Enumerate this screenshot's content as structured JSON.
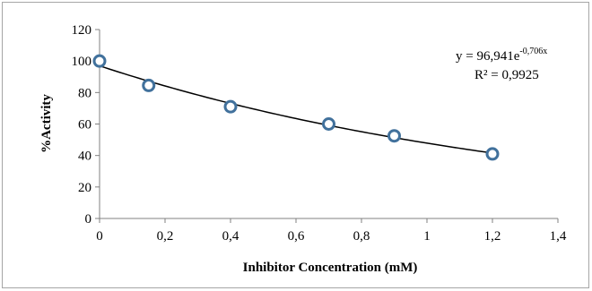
{
  "chart_data": {
    "type": "scatter",
    "xlabel": "Inhibitor  Concentration (mM)",
    "ylabel": "%Activity",
    "xlim": [
      0,
      1.4
    ],
    "ylim": [
      0,
      120
    ],
    "x_ticks": [
      "0",
      "0,2",
      "0,4",
      "0,6",
      "0,8",
      "1",
      "1,2",
      "1,4"
    ],
    "y_ticks": [
      "0",
      "20",
      "40",
      "60",
      "80",
      "100",
      "120"
    ],
    "grid": false,
    "legend": "none",
    "series": [
      {
        "x": [
          0,
          0.15,
          0.4,
          0.7,
          0.9,
          1.2
        ],
        "y": [
          100,
          84.5,
          71,
          60,
          52.5,
          41
        ]
      }
    ],
    "trendline": {
      "type": "exponential",
      "a": 96.941,
      "b": -0.706,
      "equation_prefix": "y = 96,941e",
      "equation_exponent": "-0,706x",
      "r_squared": "R² = 0,9925"
    },
    "colors": {
      "marker_stroke": "#41719c",
      "marker_fill": "#ffffff",
      "trendline": "#000000",
      "axis": "#808080"
    }
  }
}
